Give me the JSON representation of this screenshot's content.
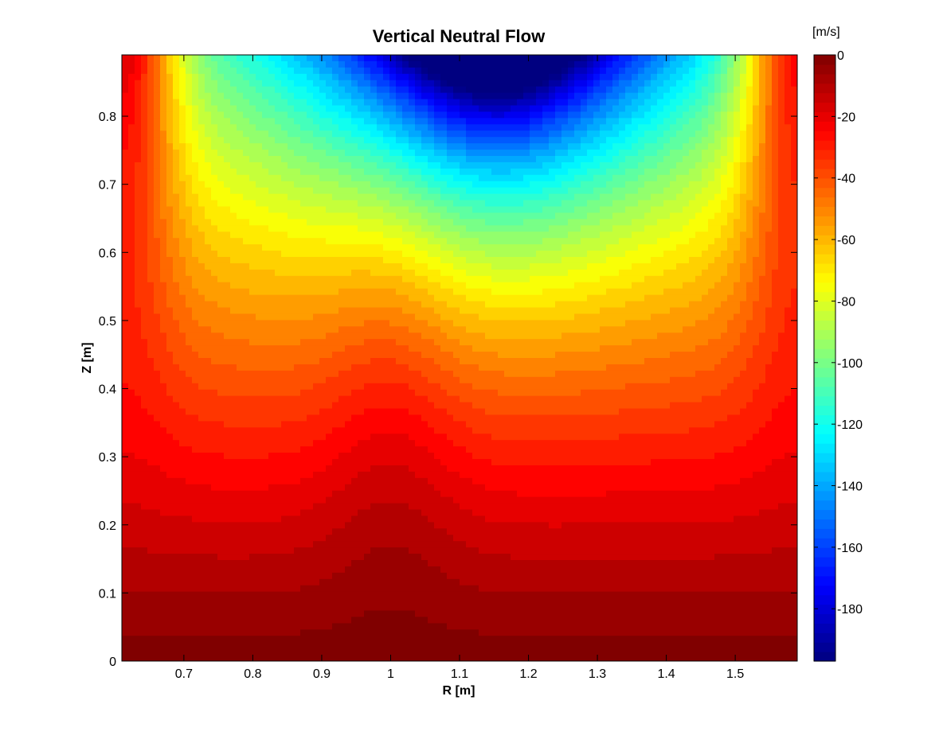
{
  "chart_data": {
    "type": "heatmap",
    "title": "Vertical Neutral Flow",
    "xlabel": "R [m]",
    "ylabel": "Z [m]",
    "xlim": [
      0.61,
      1.59
    ],
    "ylim": [
      0,
      0.89
    ],
    "xticks": [
      0.7,
      0.8,
      0.9,
      1.0,
      1.1,
      1.2,
      1.3,
      1.4,
      1.5
    ],
    "xtick_labels": [
      "0.7",
      "0.8",
      "0.9",
      "1",
      "1.1",
      "1.2",
      "1.3",
      "1.4",
      "1.5"
    ],
    "yticks": [
      0,
      0.1,
      0.2,
      0.3,
      0.4,
      0.5,
      0.6,
      0.7,
      0.8
    ],
    "ytick_labels": [
      "0",
      "0.1",
      "0.2",
      "0.3",
      "0.4",
      "0.5",
      "0.6",
      "0.7",
      "0.8"
    ],
    "colorbar": {
      "unit_label": "[m/s]",
      "range": [
        -197,
        0
      ],
      "ticks": [
        0,
        -20,
        -40,
        -60,
        -80,
        -100,
        -120,
        -140,
        -160,
        -180
      ],
      "tick_labels": [
        "0",
        "-20",
        "-40",
        "-60",
        "-80",
        "-100",
        "-120",
        "-140",
        "-160",
        "-180"
      ],
      "colormap": "jet"
    },
    "field_description_points": [
      {
        "R": 1.15,
        "Z": 0.89,
        "value": -195
      },
      {
        "R": 1.15,
        "Z": 0.75,
        "value": -130
      },
      {
        "R": 1.0,
        "Z": 0.6,
        "value": -78
      },
      {
        "R": 0.72,
        "Z": 0.85,
        "value": -75
      },
      {
        "R": 1.48,
        "Z": 0.85,
        "value": -75
      },
      {
        "R": 0.62,
        "Z": 0.85,
        "value": -20
      },
      {
        "R": 1.58,
        "Z": 0.85,
        "value": -20
      },
      {
        "R": 1.0,
        "Z": 0.4,
        "value": -50
      },
      {
        "R": 1.0,
        "Z": 0.2,
        "value": -25
      },
      {
        "R": 1.0,
        "Z": 0.0,
        "value": 0
      }
    ],
    "grid": false,
    "legend": "colorbar-right"
  }
}
